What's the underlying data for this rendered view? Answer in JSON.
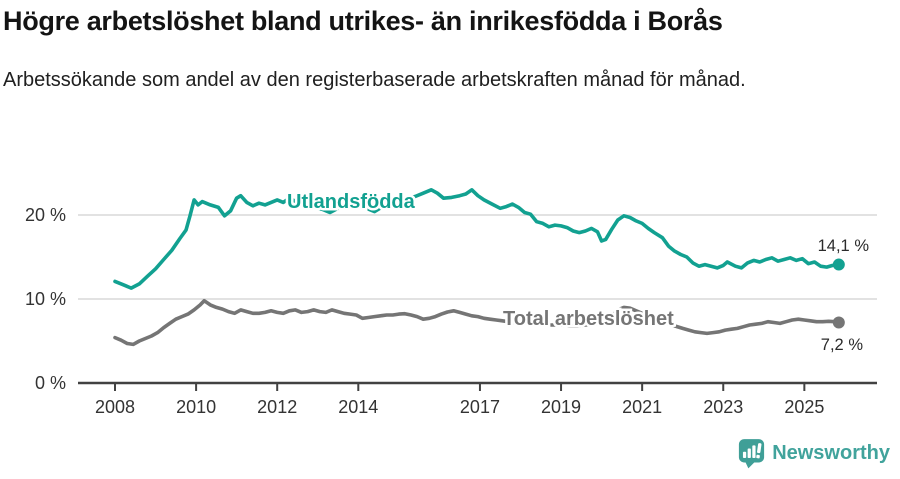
{
  "header": {
    "title": "Högre arbetslöshet bland utrikes- än inrikesfödda i Borås",
    "subtitle": "Arbetssökande som andel av den registerbaserade arbetskraften månad för månad."
  },
  "chart_data": {
    "type": "line",
    "title": "Högre arbetslöshet bland utrikes- än inrikesfödda i Borås",
    "subtitle": "Arbetssökande som andel av den registerbaserade arbetskraften månad för månad.",
    "grid": true,
    "legend_position": "inline-labels-on-lines",
    "x_axis": {
      "ticks": [
        2008,
        2010,
        2012,
        2014,
        2017,
        2019,
        2021,
        2023,
        2025
      ],
      "range": [
        2007.1,
        2026.8
      ],
      "unit": "year"
    },
    "y_axis": {
      "ticks": [
        {
          "value": 0,
          "label": "0 %"
        },
        {
          "value": 10,
          "label": "10 %"
        },
        {
          "value": 20,
          "label": "20 %"
        }
      ],
      "range": [
        0,
        25.8
      ],
      "unit": "%"
    },
    "colors": {
      "accent_teal": "#12a191",
      "gray": "#757575",
      "gridline": "#d9d9d9",
      "axis": "#424242",
      "value_label": "#2b2b2b"
    },
    "series": [
      {
        "name": "Utlandsfödda",
        "color": "#12a191",
        "end_label": "14,1 %",
        "end_value": 14.1,
        "points": [
          [
            2008.0,
            12.1
          ],
          [
            2008.2,
            11.7
          ],
          [
            2008.4,
            11.3
          ],
          [
            2008.6,
            11.8
          ],
          [
            2008.8,
            12.7
          ],
          [
            2009.0,
            13.6
          ],
          [
            2009.2,
            14.7
          ],
          [
            2009.4,
            15.8
          ],
          [
            2009.6,
            17.2
          ],
          [
            2009.75,
            18.2
          ],
          [
            2009.85,
            19.9
          ],
          [
            2009.95,
            21.8
          ],
          [
            2010.05,
            21.2
          ],
          [
            2010.15,
            21.6
          ],
          [
            2010.35,
            21.2
          ],
          [
            2010.55,
            20.9
          ],
          [
            2010.7,
            19.9
          ],
          [
            2010.85,
            20.5
          ],
          [
            2011.0,
            22.0
          ],
          [
            2011.1,
            22.3
          ],
          [
            2011.25,
            21.5
          ],
          [
            2011.4,
            21.1
          ],
          [
            2011.55,
            21.4
          ],
          [
            2011.7,
            21.2
          ],
          [
            2011.85,
            21.5
          ],
          [
            2012.0,
            21.8
          ],
          [
            2012.15,
            21.5
          ],
          [
            2012.3,
            22.0
          ],
          [
            2012.5,
            21.5
          ],
          [
            2012.7,
            21.2
          ],
          [
            2012.9,
            20.9
          ],
          [
            2013.1,
            20.7
          ],
          [
            2013.3,
            20.3
          ],
          [
            2013.5,
            20.8
          ],
          [
            2013.7,
            21.1
          ],
          [
            2013.9,
            21.4
          ],
          [
            2014.1,
            21.0
          ],
          [
            2014.25,
            20.7
          ],
          [
            2014.4,
            20.4
          ],
          [
            2014.6,
            21.0
          ],
          [
            2014.8,
            21.4
          ],
          [
            2015.0,
            21.7
          ],
          [
            2015.2,
            21.9
          ],
          [
            2015.4,
            22.2
          ],
          [
            2015.6,
            22.6
          ],
          [
            2015.8,
            23.0
          ],
          [
            2015.95,
            22.6
          ],
          [
            2016.1,
            22.0
          ],
          [
            2016.3,
            22.1
          ],
          [
            2016.5,
            22.3
          ],
          [
            2016.65,
            22.5
          ],
          [
            2016.8,
            23.0
          ],
          [
            2016.95,
            22.3
          ],
          [
            2017.1,
            21.8
          ],
          [
            2017.3,
            21.3
          ],
          [
            2017.5,
            20.8
          ],
          [
            2017.65,
            21.0
          ],
          [
            2017.8,
            21.3
          ],
          [
            2017.95,
            20.9
          ],
          [
            2018.1,
            20.3
          ],
          [
            2018.25,
            20.1
          ],
          [
            2018.4,
            19.2
          ],
          [
            2018.55,
            19.0
          ],
          [
            2018.7,
            18.6
          ],
          [
            2018.85,
            18.8
          ],
          [
            2019.0,
            18.7
          ],
          [
            2019.15,
            18.5
          ],
          [
            2019.3,
            18.1
          ],
          [
            2019.45,
            17.9
          ],
          [
            2019.6,
            18.1
          ],
          [
            2019.75,
            18.4
          ],
          [
            2019.9,
            18.0
          ],
          [
            2020.0,
            16.9
          ],
          [
            2020.1,
            17.1
          ],
          [
            2020.25,
            18.3
          ],
          [
            2020.4,
            19.4
          ],
          [
            2020.55,
            19.9
          ],
          [
            2020.7,
            19.7
          ],
          [
            2020.85,
            19.3
          ],
          [
            2021.0,
            19.0
          ],
          [
            2021.15,
            18.4
          ],
          [
            2021.3,
            17.9
          ],
          [
            2021.5,
            17.3
          ],
          [
            2021.65,
            16.3
          ],
          [
            2021.8,
            15.7
          ],
          [
            2021.95,
            15.3
          ],
          [
            2022.1,
            15.0
          ],
          [
            2022.25,
            14.3
          ],
          [
            2022.4,
            13.9
          ],
          [
            2022.55,
            14.1
          ],
          [
            2022.7,
            13.9
          ],
          [
            2022.85,
            13.7
          ],
          [
            2023.0,
            14.0
          ],
          [
            2023.1,
            14.4
          ],
          [
            2023.3,
            13.9
          ],
          [
            2023.45,
            13.7
          ],
          [
            2023.6,
            14.3
          ],
          [
            2023.75,
            14.6
          ],
          [
            2023.9,
            14.4
          ],
          [
            2024.05,
            14.7
          ],
          [
            2024.2,
            14.9
          ],
          [
            2024.35,
            14.5
          ],
          [
            2024.5,
            14.7
          ],
          [
            2024.65,
            14.9
          ],
          [
            2024.8,
            14.6
          ],
          [
            2024.95,
            14.8
          ],
          [
            2025.1,
            14.2
          ],
          [
            2025.25,
            14.4
          ],
          [
            2025.4,
            13.9
          ],
          [
            2025.55,
            13.8
          ],
          [
            2025.7,
            14.0
          ],
          [
            2025.85,
            14.1
          ]
        ]
      },
      {
        "name": "Total arbetslöshet",
        "color": "#757575",
        "end_label": "7,2 %",
        "end_value": 7.2,
        "points": [
          [
            2008.0,
            5.4
          ],
          [
            2008.15,
            5.1
          ],
          [
            2008.3,
            4.7
          ],
          [
            2008.45,
            4.6
          ],
          [
            2008.6,
            5.0
          ],
          [
            2008.75,
            5.3
          ],
          [
            2008.9,
            5.6
          ],
          [
            2009.05,
            6.0
          ],
          [
            2009.2,
            6.6
          ],
          [
            2009.35,
            7.1
          ],
          [
            2009.5,
            7.6
          ],
          [
            2009.65,
            7.9
          ],
          [
            2009.8,
            8.2
          ],
          [
            2009.95,
            8.7
          ],
          [
            2010.1,
            9.3
          ],
          [
            2010.2,
            9.8
          ],
          [
            2010.35,
            9.3
          ],
          [
            2010.5,
            9.0
          ],
          [
            2010.65,
            8.8
          ],
          [
            2010.8,
            8.5
          ],
          [
            2010.95,
            8.3
          ],
          [
            2011.1,
            8.7
          ],
          [
            2011.25,
            8.5
          ],
          [
            2011.4,
            8.3
          ],
          [
            2011.55,
            8.3
          ],
          [
            2011.7,
            8.4
          ],
          [
            2011.85,
            8.6
          ],
          [
            2012.0,
            8.4
          ],
          [
            2012.15,
            8.3
          ],
          [
            2012.3,
            8.6
          ],
          [
            2012.45,
            8.7
          ],
          [
            2012.6,
            8.4
          ],
          [
            2012.75,
            8.5
          ],
          [
            2012.9,
            8.7
          ],
          [
            2013.05,
            8.5
          ],
          [
            2013.2,
            8.4
          ],
          [
            2013.35,
            8.7
          ],
          [
            2013.5,
            8.5
          ],
          [
            2013.65,
            8.3
          ],
          [
            2013.8,
            8.2
          ],
          [
            2013.95,
            8.1
          ],
          [
            2014.1,
            7.7
          ],
          [
            2014.25,
            7.8
          ],
          [
            2014.4,
            7.9
          ],
          [
            2014.55,
            8.0
          ],
          [
            2014.7,
            8.1
          ],
          [
            2014.85,
            8.1
          ],
          [
            2015.0,
            8.2
          ],
          [
            2015.15,
            8.25
          ],
          [
            2015.3,
            8.1
          ],
          [
            2015.45,
            7.9
          ],
          [
            2015.6,
            7.6
          ],
          [
            2015.75,
            7.7
          ],
          [
            2015.9,
            7.9
          ],
          [
            2016.05,
            8.2
          ],
          [
            2016.2,
            8.45
          ],
          [
            2016.35,
            8.6
          ],
          [
            2016.5,
            8.4
          ],
          [
            2016.65,
            8.2
          ],
          [
            2016.8,
            8.0
          ],
          [
            2016.95,
            7.9
          ],
          [
            2017.1,
            7.7
          ],
          [
            2017.25,
            7.6
          ],
          [
            2017.4,
            7.5
          ],
          [
            2017.55,
            7.4
          ],
          [
            2017.7,
            7.3
          ],
          [
            2017.85,
            7.2
          ],
          [
            2018.0,
            7.2
          ],
          [
            2018.2,
            7.1
          ],
          [
            2018.4,
            7.0
          ],
          [
            2018.6,
            6.9
          ],
          [
            2018.8,
            6.9
          ],
          [
            2019.0,
            6.9
          ],
          [
            2019.2,
            6.8
          ],
          [
            2019.4,
            6.8
          ],
          [
            2019.6,
            6.9
          ],
          [
            2019.8,
            7.0
          ],
          [
            2019.95,
            7.1
          ],
          [
            2020.1,
            7.3
          ],
          [
            2020.25,
            7.9
          ],
          [
            2020.4,
            8.7
          ],
          [
            2020.55,
            9.0
          ],
          [
            2020.7,
            8.9
          ],
          [
            2020.85,
            8.6
          ],
          [
            2021.0,
            8.3
          ],
          [
            2021.2,
            7.9
          ],
          [
            2021.4,
            7.5
          ],
          [
            2021.6,
            7.1
          ],
          [
            2021.8,
            6.8
          ],
          [
            2022.0,
            6.5
          ],
          [
            2022.15,
            6.3
          ],
          [
            2022.3,
            6.1
          ],
          [
            2022.45,
            6.0
          ],
          [
            2022.6,
            5.9
          ],
          [
            2022.75,
            6.0
          ],
          [
            2022.9,
            6.1
          ],
          [
            2023.05,
            6.3
          ],
          [
            2023.2,
            6.4
          ],
          [
            2023.35,
            6.5
          ],
          [
            2023.5,
            6.7
          ],
          [
            2023.65,
            6.9
          ],
          [
            2023.8,
            7.0
          ],
          [
            2023.95,
            7.1
          ],
          [
            2024.1,
            7.3
          ],
          [
            2024.25,
            7.2
          ],
          [
            2024.4,
            7.1
          ],
          [
            2024.55,
            7.3
          ],
          [
            2024.7,
            7.5
          ],
          [
            2024.85,
            7.6
          ],
          [
            2025.0,
            7.5
          ],
          [
            2025.15,
            7.4
          ],
          [
            2025.3,
            7.3
          ],
          [
            2025.45,
            7.3
          ],
          [
            2025.6,
            7.35
          ],
          [
            2025.75,
            7.3
          ],
          [
            2025.85,
            7.2
          ]
        ]
      }
    ]
  },
  "footer": {
    "brand": "Newsworthy",
    "brand_color": "#41a39c",
    "logo_icon": "newsworthy-bar-chart-pin-icon"
  }
}
